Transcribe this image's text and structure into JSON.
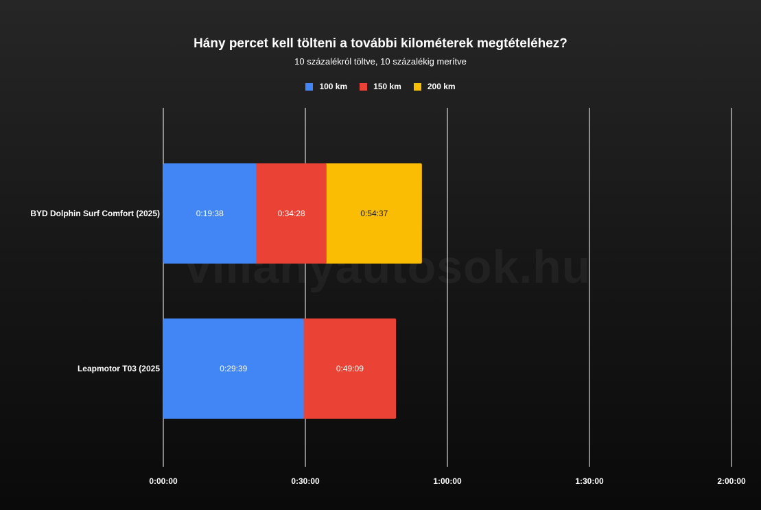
{
  "chart_data": {
    "type": "bar",
    "orientation": "horizontal",
    "stacked": true,
    "title": "Hány percet kell tölteni a további kilométerek megtételéhez?",
    "subtitle": "10 százalékról töltve, 10 százalékig merítve",
    "categories": [
      "BYD Dolphin Surf Comfort (2025)",
      "Leapmotor T03 (2025"
    ],
    "series": [
      {
        "name": "100 km",
        "color": "#4285f4",
        "values": [
          1178,
          1779
        ],
        "labels": [
          "0:19:38",
          "0:29:39"
        ]
      },
      {
        "name": "150 km",
        "color": "#ea4335",
        "values": [
          2068,
          2949
        ],
        "labels": [
          "0:34:28",
          "0:49:09"
        ]
      },
      {
        "name": "200 km",
        "color": "#fbbc04",
        "values": [
          3277,
          null
        ],
        "labels": [
          "0:54:37",
          ""
        ]
      }
    ],
    "xlim": [
      0,
      7200
    ],
    "x_ticks": [
      0,
      1800,
      3600,
      5400,
      7200
    ],
    "x_tick_labels": [
      "0:00:00",
      "0:30:00",
      "1:00:00",
      "1:30:00",
      "2:00:00"
    ],
    "grid": "vertical",
    "legend_position": "top"
  },
  "watermark": "villanyautosok.hu"
}
